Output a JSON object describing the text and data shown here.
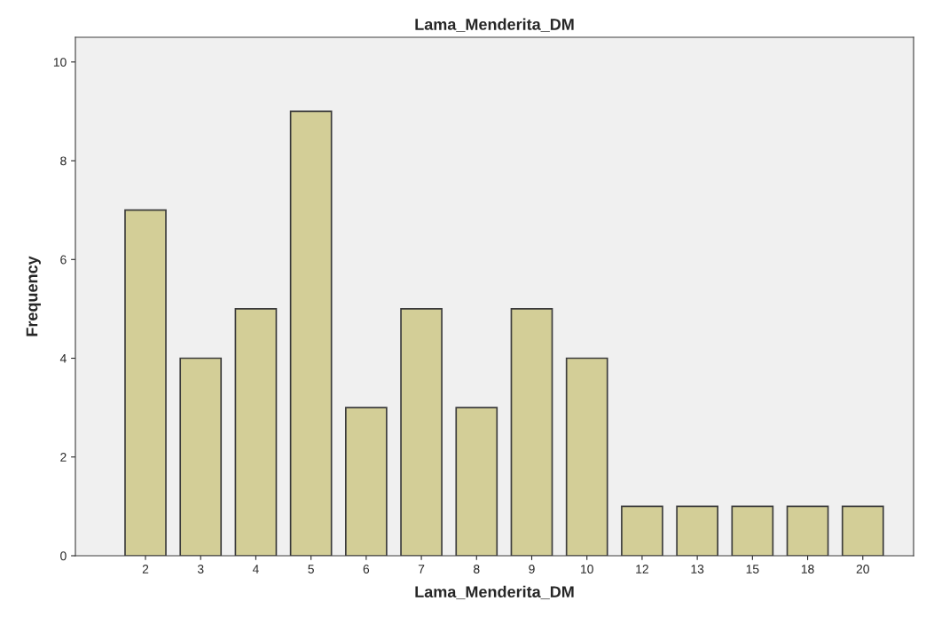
{
  "chart_data": {
    "type": "bar",
    "title": "Lama_Menderita_DM",
    "xlabel": "Lama_Menderita_DM",
    "ylabel": "Frequency",
    "categories": [
      "2",
      "3",
      "4",
      "5",
      "6",
      "7",
      "8",
      "9",
      "10",
      "12",
      "13",
      "15",
      "18",
      "20"
    ],
    "values": [
      7,
      4,
      5,
      9,
      3,
      5,
      3,
      5,
      4,
      1,
      1,
      1,
      1,
      1
    ],
    "color": "#d3ce97",
    "ylim": [
      0,
      10.5
    ],
    "yticks": [
      0,
      2,
      4,
      6,
      8,
      10
    ],
    "grid": false,
    "legend": false
  }
}
